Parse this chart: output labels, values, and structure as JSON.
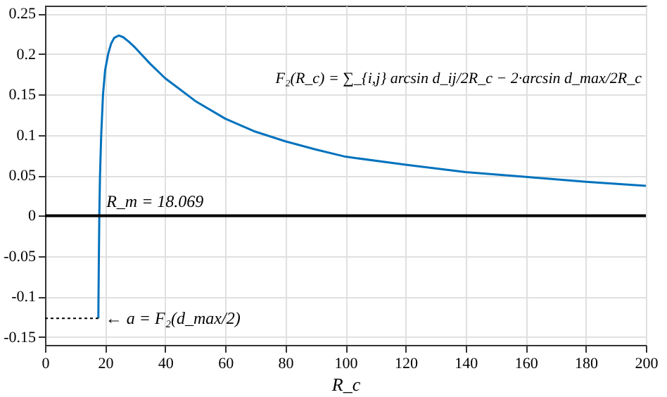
{
  "chart_data": {
    "type": "line",
    "xlabel": "R_c",
    "xlim": [
      0,
      200
    ],
    "ylim": [
      -0.16,
      0.26
    ],
    "xticks": [
      0,
      20,
      40,
      60,
      80,
      100,
      120,
      140,
      160,
      180,
      200
    ],
    "yticks": [
      -0.15,
      -0.1,
      -0.05,
      0,
      0.05,
      0.1,
      0.15,
      0.2,
      0.25
    ],
    "grid": true,
    "marker": "none",
    "series": [
      {
        "color": "#0072bd",
        "line_style": "solid",
        "x": [
          17.75,
          17.8,
          17.9,
          18.069,
          18.3,
          18.7,
          19.3,
          20,
          21,
          22,
          23,
          24.5,
          26,
          28,
          30,
          35,
          40,
          50,
          60,
          70,
          80,
          90,
          100,
          120,
          140,
          160,
          180,
          200
        ],
        "values": [
          -0.127,
          -0.1,
          -0.06,
          0,
          0.05,
          0.1,
          0.15,
          0.18,
          0.2,
          0.213,
          0.22,
          0.223,
          0.221,
          0.215,
          0.208,
          0.188,
          0.17,
          0.142,
          0.12,
          0.104,
          0.092,
          0.082,
          0.073,
          0.063,
          0.054,
          0.048,
          0.042,
          0.037
        ]
      },
      {
        "color": "#000000",
        "line_style": "dotted",
        "x": [
          0,
          17.75
        ],
        "values": [
          -0.127,
          -0.127
        ]
      }
    ],
    "ref_lines": [
      {
        "axis": "y",
        "value": 0,
        "color": "#000000"
      }
    ],
    "annotations": [
      {
        "text": "R_m = 18.069",
        "x": 18.069,
        "y": 0
      },
      {
        "text": "← a = F₂(d_max/2)",
        "x": 17.75,
        "y": -0.127
      },
      "F₂(R_c) = ∑_{i,j} arcsin d_ij/2R_c − 2·arcsin d_max/2R_c"
    ]
  }
}
